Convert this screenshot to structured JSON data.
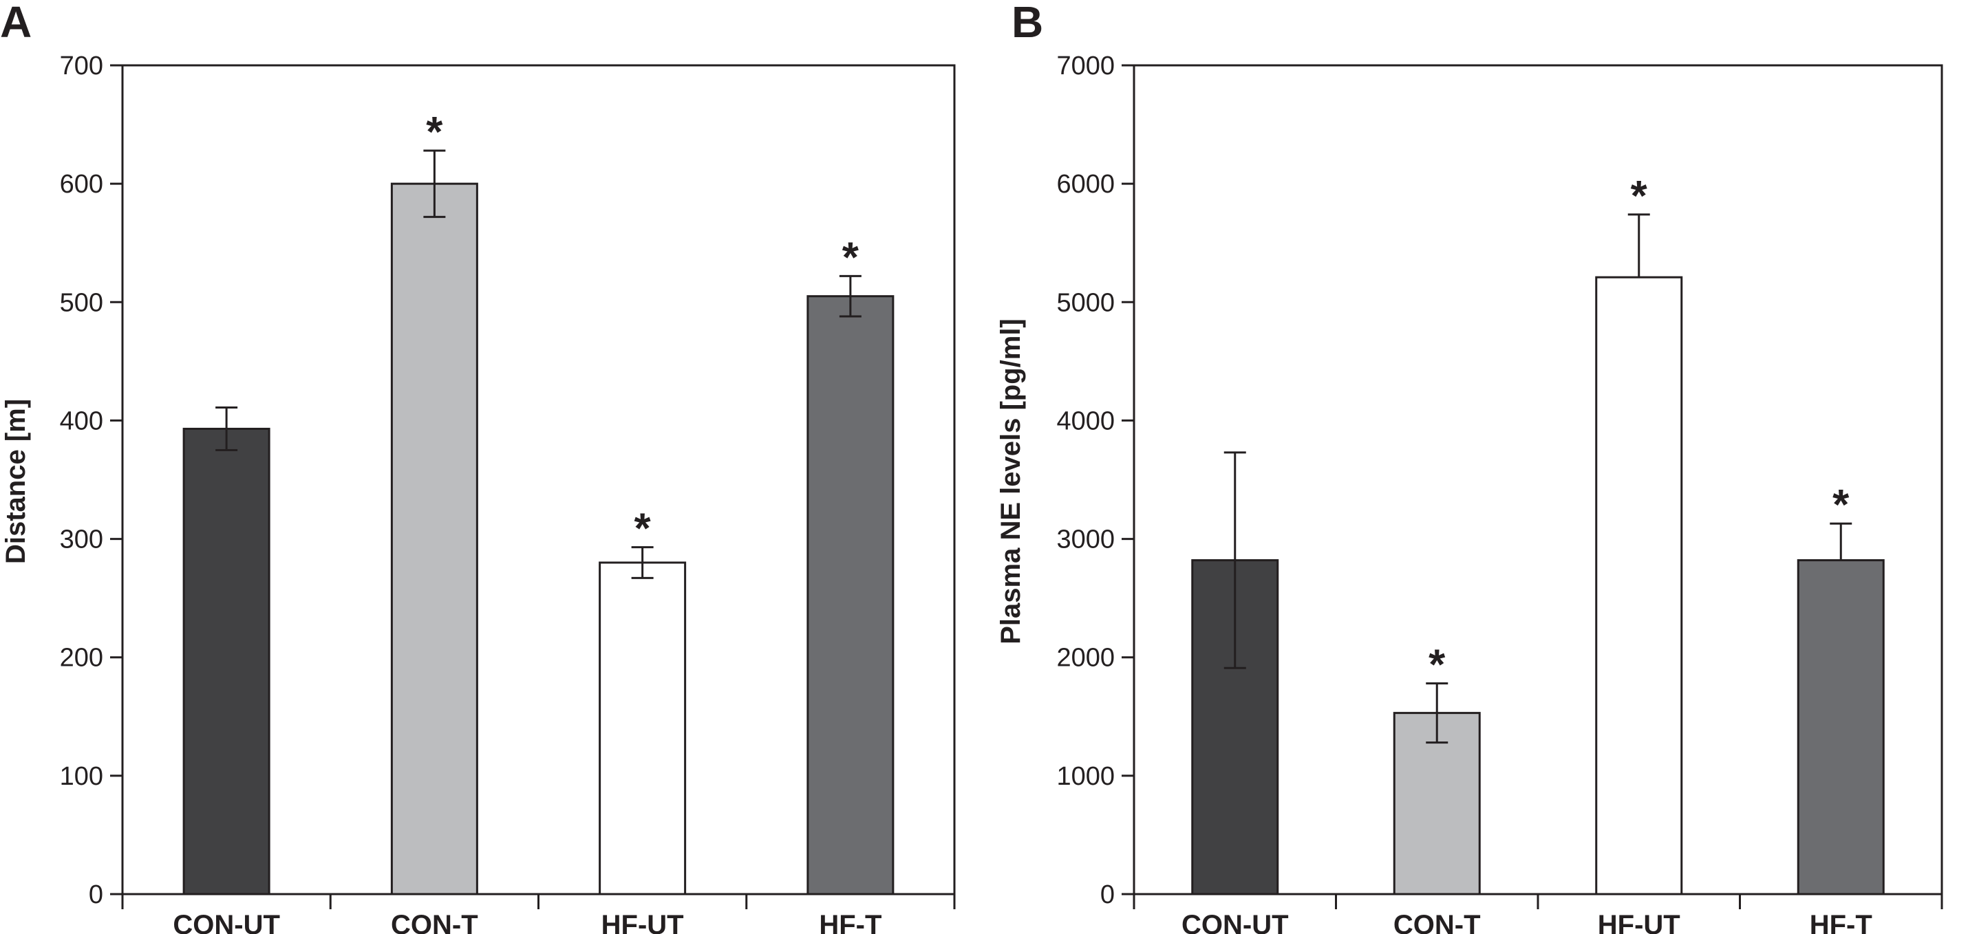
{
  "chart_data": [
    {
      "type": "bar",
      "panel": "A",
      "title": "",
      "xlabel": "",
      "ylabel": "Distance [m]",
      "categories": [
        "CON-UT",
        "CON-T",
        "HF-UT",
        "HF-T"
      ],
      "values": [
        393,
        600,
        280,
        505
      ],
      "errors": [
        18,
        28,
        13,
        17
      ],
      "significance": [
        "",
        "*",
        "*",
        "*"
      ],
      "colors": [
        "#414143",
        "#bcbdbf",
        "#ffffff",
        "#6c6d70"
      ],
      "ylim": [
        0,
        700
      ],
      "yticks": [
        0,
        100,
        200,
        300,
        400,
        500,
        600,
        700
      ],
      "grid": false
    },
    {
      "type": "bar",
      "panel": "B",
      "title": "",
      "xlabel": "",
      "ylabel": "Plasma NE levels [pg/ml]",
      "categories": [
        "CON-UT",
        "CON-T",
        "HF-UT",
        "HF-T"
      ],
      "values": [
        2820,
        1530,
        5210,
        2820
      ],
      "errors": [
        910,
        250,
        530,
        310
      ],
      "error_style": [
        "both",
        "both",
        "up",
        "up"
      ],
      "significance": [
        "",
        "*",
        "*",
        "*"
      ],
      "colors": [
        "#414143",
        "#bcbdbf",
        "#ffffff",
        "#6c6d70"
      ],
      "ylim": [
        0,
        7000
      ],
      "yticks": [
        0,
        1000,
        2000,
        3000,
        4000,
        5000,
        6000,
        7000
      ],
      "grid": false
    }
  ]
}
